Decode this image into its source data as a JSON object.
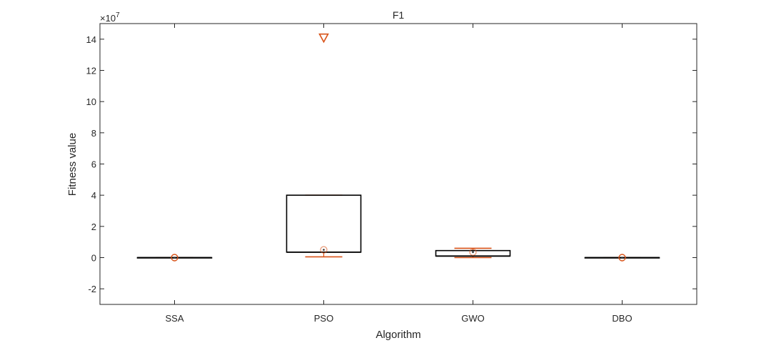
{
  "chart_data": {
    "type": "box",
    "title": "F1",
    "xlabel": "Algorithm",
    "ylabel": "Fitness value",
    "y_exponent_label": "×10",
    "y_exponent_power": "7",
    "y_scale": 10000000,
    "ylim": [
      -3,
      15
    ],
    "yticks": [
      -2,
      0,
      2,
      4,
      6,
      8,
      10,
      12,
      14
    ],
    "ytick_labels": [
      "-2",
      "0",
      "2",
      "4",
      "6",
      "8",
      "10",
      "12",
      "14"
    ],
    "grid": false,
    "categories": [
      "SSA",
      "PSO",
      "GWO",
      "DBO"
    ],
    "boxes": [
      {
        "name": "SSA",
        "whisker_low": 0,
        "q1": 0,
        "median": 0,
        "q3": 0,
        "whisker_high": 0,
        "mean": 0,
        "outliers": []
      },
      {
        "name": "PSO",
        "whisker_low": 0.05,
        "q1": 0.35,
        "median": 0.35,
        "q3": 4.0,
        "whisker_high": 4.0,
        "mean": 0.5,
        "outliers": [
          14.1
        ]
      },
      {
        "name": "GWO",
        "whisker_low": 0,
        "q1": 0.1,
        "median": 0.1,
        "q3": 0.45,
        "whisker_high": 0.6,
        "mean": 0.35,
        "outliers": []
      },
      {
        "name": "DBO",
        "whisker_low": 0,
        "q1": 0,
        "median": 0,
        "q3": 0,
        "whisker_high": 0,
        "mean": 0,
        "outliers": []
      }
    ],
    "colors": {
      "box": "#000000",
      "whisker": "#D95319",
      "mean_marker": "#D95319",
      "outlier": "#D95319",
      "axis": "#262626"
    }
  }
}
